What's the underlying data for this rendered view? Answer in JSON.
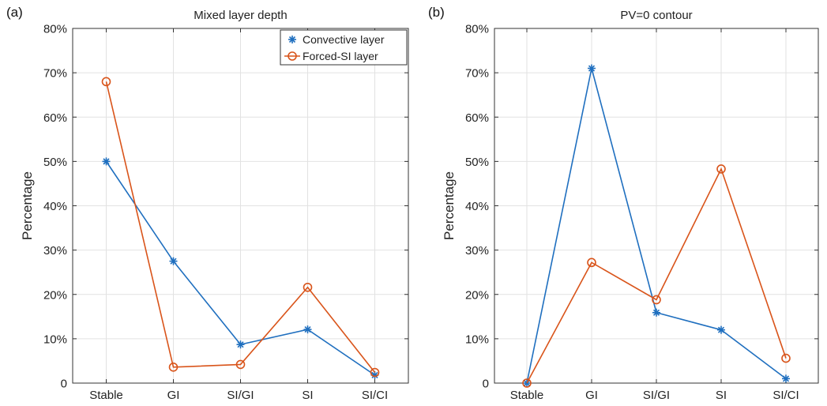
{
  "figure": {
    "panel_a_tag": "(a)",
    "panel_b_tag": "(b)"
  },
  "colors": {
    "convective": "#1f6fbf",
    "forced_si": "#d9541a",
    "grid": "#e2e2e2",
    "axis": "#333333"
  },
  "chart_data": [
    {
      "type": "line",
      "title": "Mixed layer depth",
      "xlabel": "",
      "ylabel": "Percentage",
      "categories": [
        "Stable",
        "GI",
        "SI/GI",
        "SI",
        "SI/CI"
      ],
      "ylim": [
        0,
        80
      ],
      "yticks": [
        0,
        10,
        20,
        30,
        40,
        50,
        60,
        70,
        80
      ],
      "ytick_labels": [
        "0",
        "10%",
        "20%",
        "30%",
        "40%",
        "50%",
        "60%",
        "70%",
        "80%"
      ],
      "grid": true,
      "legend": "top-right",
      "series": [
        {
          "name": "Convective layer",
          "marker": "star",
          "color_key": "convective",
          "values": [
            50,
            27.5,
            8.7,
            12.1,
            1.8
          ]
        },
        {
          "name": "Forced-SI layer",
          "marker": "circle",
          "color_key": "forced_si",
          "values": [
            68,
            3.6,
            4.2,
            21.6,
            2.4
          ]
        }
      ]
    },
    {
      "type": "line",
      "title": "PV=0 contour",
      "xlabel": "",
      "ylabel": "Percentage",
      "categories": [
        "Stable",
        "GI",
        "SI/GI",
        "SI",
        "SI/CI"
      ],
      "ylim": [
        0,
        80
      ],
      "yticks": [
        0,
        10,
        20,
        30,
        40,
        50,
        60,
        70,
        80
      ],
      "ytick_labels": [
        "0",
        "10%",
        "20%",
        "30%",
        "40%",
        "50%",
        "60%",
        "70%",
        "80%"
      ],
      "grid": true,
      "legend": "none",
      "series": [
        {
          "name": "Convective layer",
          "marker": "star",
          "color_key": "convective",
          "values": [
            0,
            71,
            15.9,
            12,
            1
          ]
        },
        {
          "name": "Forced-SI layer",
          "marker": "circle",
          "color_key": "forced_si",
          "values": [
            0,
            27.2,
            18.8,
            48.3,
            5.6
          ]
        }
      ]
    }
  ]
}
